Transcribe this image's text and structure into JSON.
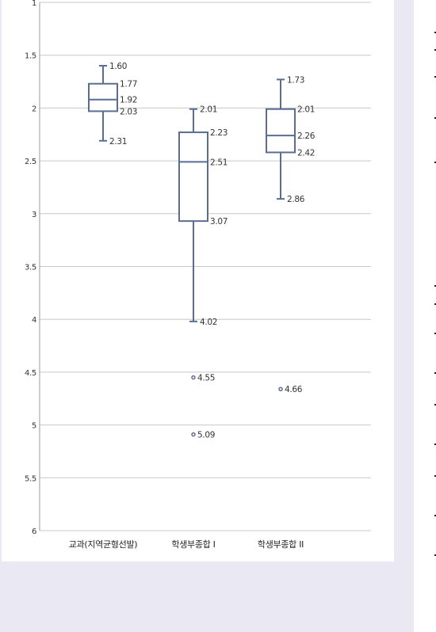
{
  "chart_data": {
    "type": "boxplot",
    "title": "",
    "xlabel": "",
    "ylabel": "",
    "ylim": [
      1,
      6
    ],
    "y_inverted": true,
    "y_ticks": [
      "1",
      "1.5",
      "2",
      "2.5",
      "3",
      "3.5",
      "4",
      "4.5",
      "5",
      "5.5",
      "6"
    ],
    "y_tick_values": [
      1,
      1.5,
      2,
      2.5,
      3,
      3.5,
      4,
      4.5,
      5,
      5.5,
      6
    ],
    "grid": true,
    "categories": [
      "교과(지역균형선발)",
      "학생부종합 I",
      "학생부종합 II"
    ],
    "boxes": [
      {
        "category": "교과(지역균형선발)",
        "min": 1.6,
        "q1": 1.77,
        "median": 1.92,
        "q3": 2.03,
        "max": 2.31,
        "labels": {
          "min": "1.60",
          "q1": "1.77",
          "median": "1.92",
          "q3": "2.03",
          "max": "2.31"
        },
        "outliers": []
      },
      {
        "category": "학생부종합 I",
        "min": 2.01,
        "q1": 2.23,
        "median": 2.51,
        "q3": 3.07,
        "max": 4.02,
        "labels": {
          "min": "2.01",
          "q1": "2.23",
          "median": "2.51",
          "q3": "3.07",
          "max": "4.02"
        },
        "outliers": [
          {
            "value": 4.55,
            "label": "4.55"
          },
          {
            "value": 5.09,
            "label": "5.09"
          }
        ]
      },
      {
        "category": "학생부종합 II",
        "min": 1.73,
        "q1": 2.01,
        "median": 2.26,
        "q3": 2.42,
        "max": 2.86,
        "labels": {
          "min": "1.73",
          "q1": "2.01",
          "median": "2.26",
          "q3": "2.42",
          "max": "2.86"
        },
        "outliers": [
          {
            "value": 4.66,
            "label": "4.66"
          }
        ]
      }
    ]
  },
  "colors": {
    "box_stroke": "#5a6d92",
    "grid": "#c8c8c8",
    "panel_bg": "#ffffff",
    "page_bg": "#e9e8f3"
  }
}
